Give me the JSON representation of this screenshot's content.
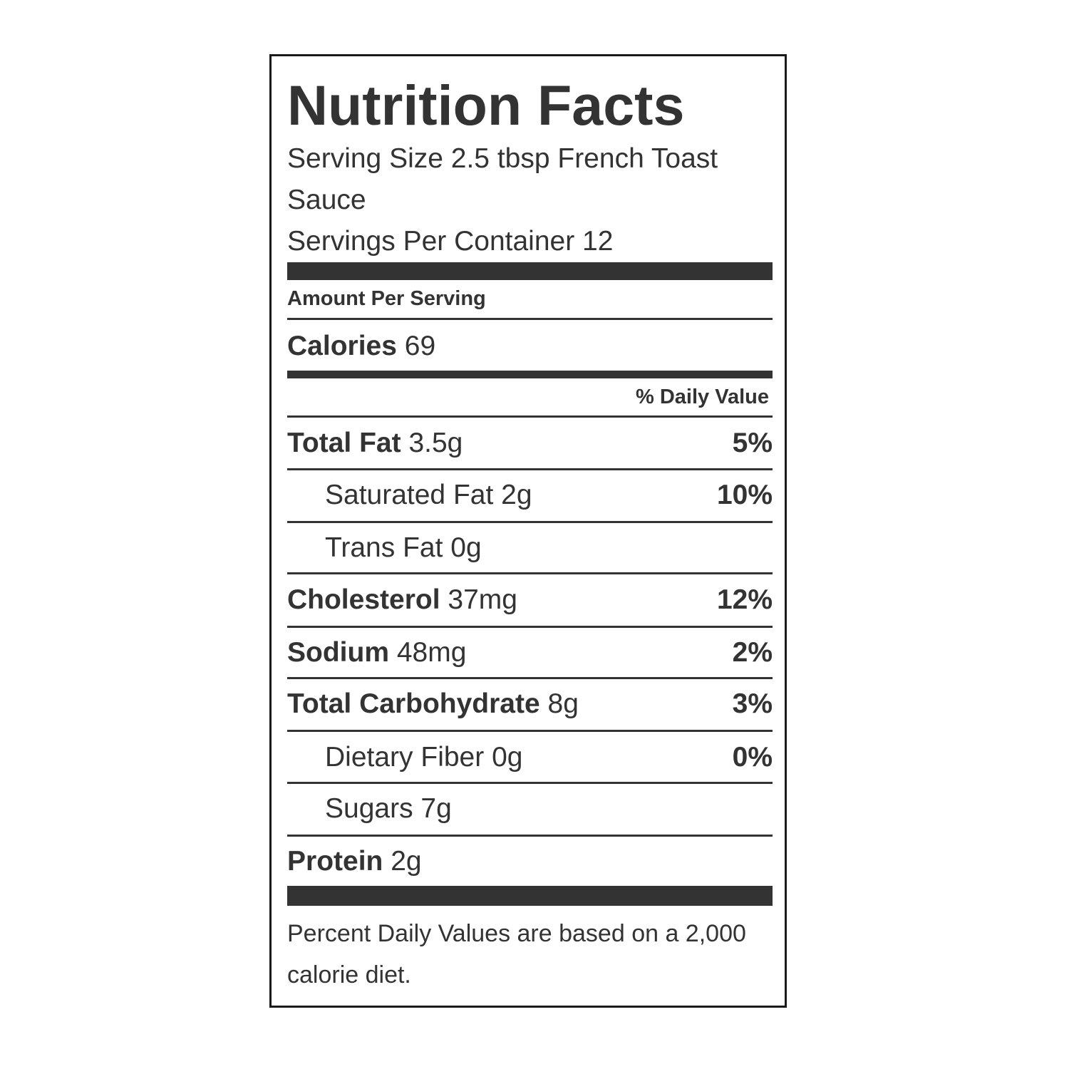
{
  "label": {
    "title": "Nutrition Facts",
    "serving_size": "Serving Size 2.5 tbsp French Toast Sauce",
    "servings_per_container": "Servings Per Container 12",
    "amount_per_serving": "Amount Per Serving",
    "calories_label": "Calories",
    "calories_value": "69",
    "daily_value_header": "% Daily Value",
    "nutrients": [
      {
        "name": "Total Fat",
        "amount": "3.5g",
        "dv": "5%"
      },
      {
        "name": "Saturated Fat",
        "amount": "2g",
        "dv": "10%"
      },
      {
        "name": "Trans Fat",
        "amount": "0g",
        "dv": ""
      },
      {
        "name": "Cholesterol",
        "amount": "37mg",
        "dv": "12%"
      },
      {
        "name": "Sodium",
        "amount": "48mg",
        "dv": "2%"
      },
      {
        "name": "Total Carbohydrate",
        "amount": "8g",
        "dv": "3%"
      },
      {
        "name": "Dietary Fiber",
        "amount": "0g",
        "dv": "0%"
      },
      {
        "name": "Sugars",
        "amount": "7g",
        "dv": ""
      },
      {
        "name": "Protein",
        "amount": "2g",
        "dv": ""
      }
    ],
    "footnote": "Percent Daily Values are based on a 2,000 calorie diet."
  }
}
